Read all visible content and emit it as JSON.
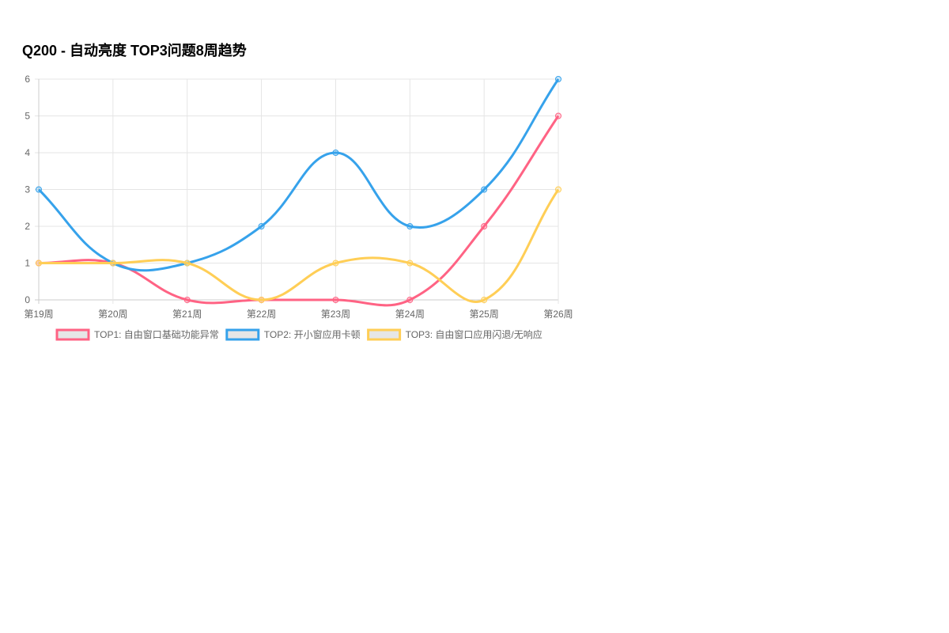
{
  "chart_data": {
    "type": "line",
    "title": "Q200 - 自动亮度 TOP3问题8周趋势",
    "categories": [
      "第19周",
      "第20周",
      "第21周",
      "第22周",
      "第23周",
      "第24周",
      "第25周",
      "第26周"
    ],
    "ylim": [
      0,
      6
    ],
    "yticks": [
      "0",
      "1",
      "2",
      "3",
      "4",
      "5",
      "6"
    ],
    "grid": true,
    "legend_position": "bottom",
    "series": [
      {
        "name": "TOP1: 自由窗口基础功能异常",
        "color": "#ff6384",
        "values": [
          1,
          1,
          0,
          0,
          0,
          0,
          2,
          5
        ]
      },
      {
        "name": "TOP2: 开小窗应用卡顿",
        "color": "#36a2eb",
        "values": [
          3,
          1,
          1,
          2,
          4,
          2,
          3,
          6
        ]
      },
      {
        "name": "TOP3: 自由窗口应用闪退/无响应",
        "color": "#ffce56",
        "values": [
          1,
          1,
          1,
          0,
          1,
          1,
          0,
          3
        ]
      }
    ]
  }
}
